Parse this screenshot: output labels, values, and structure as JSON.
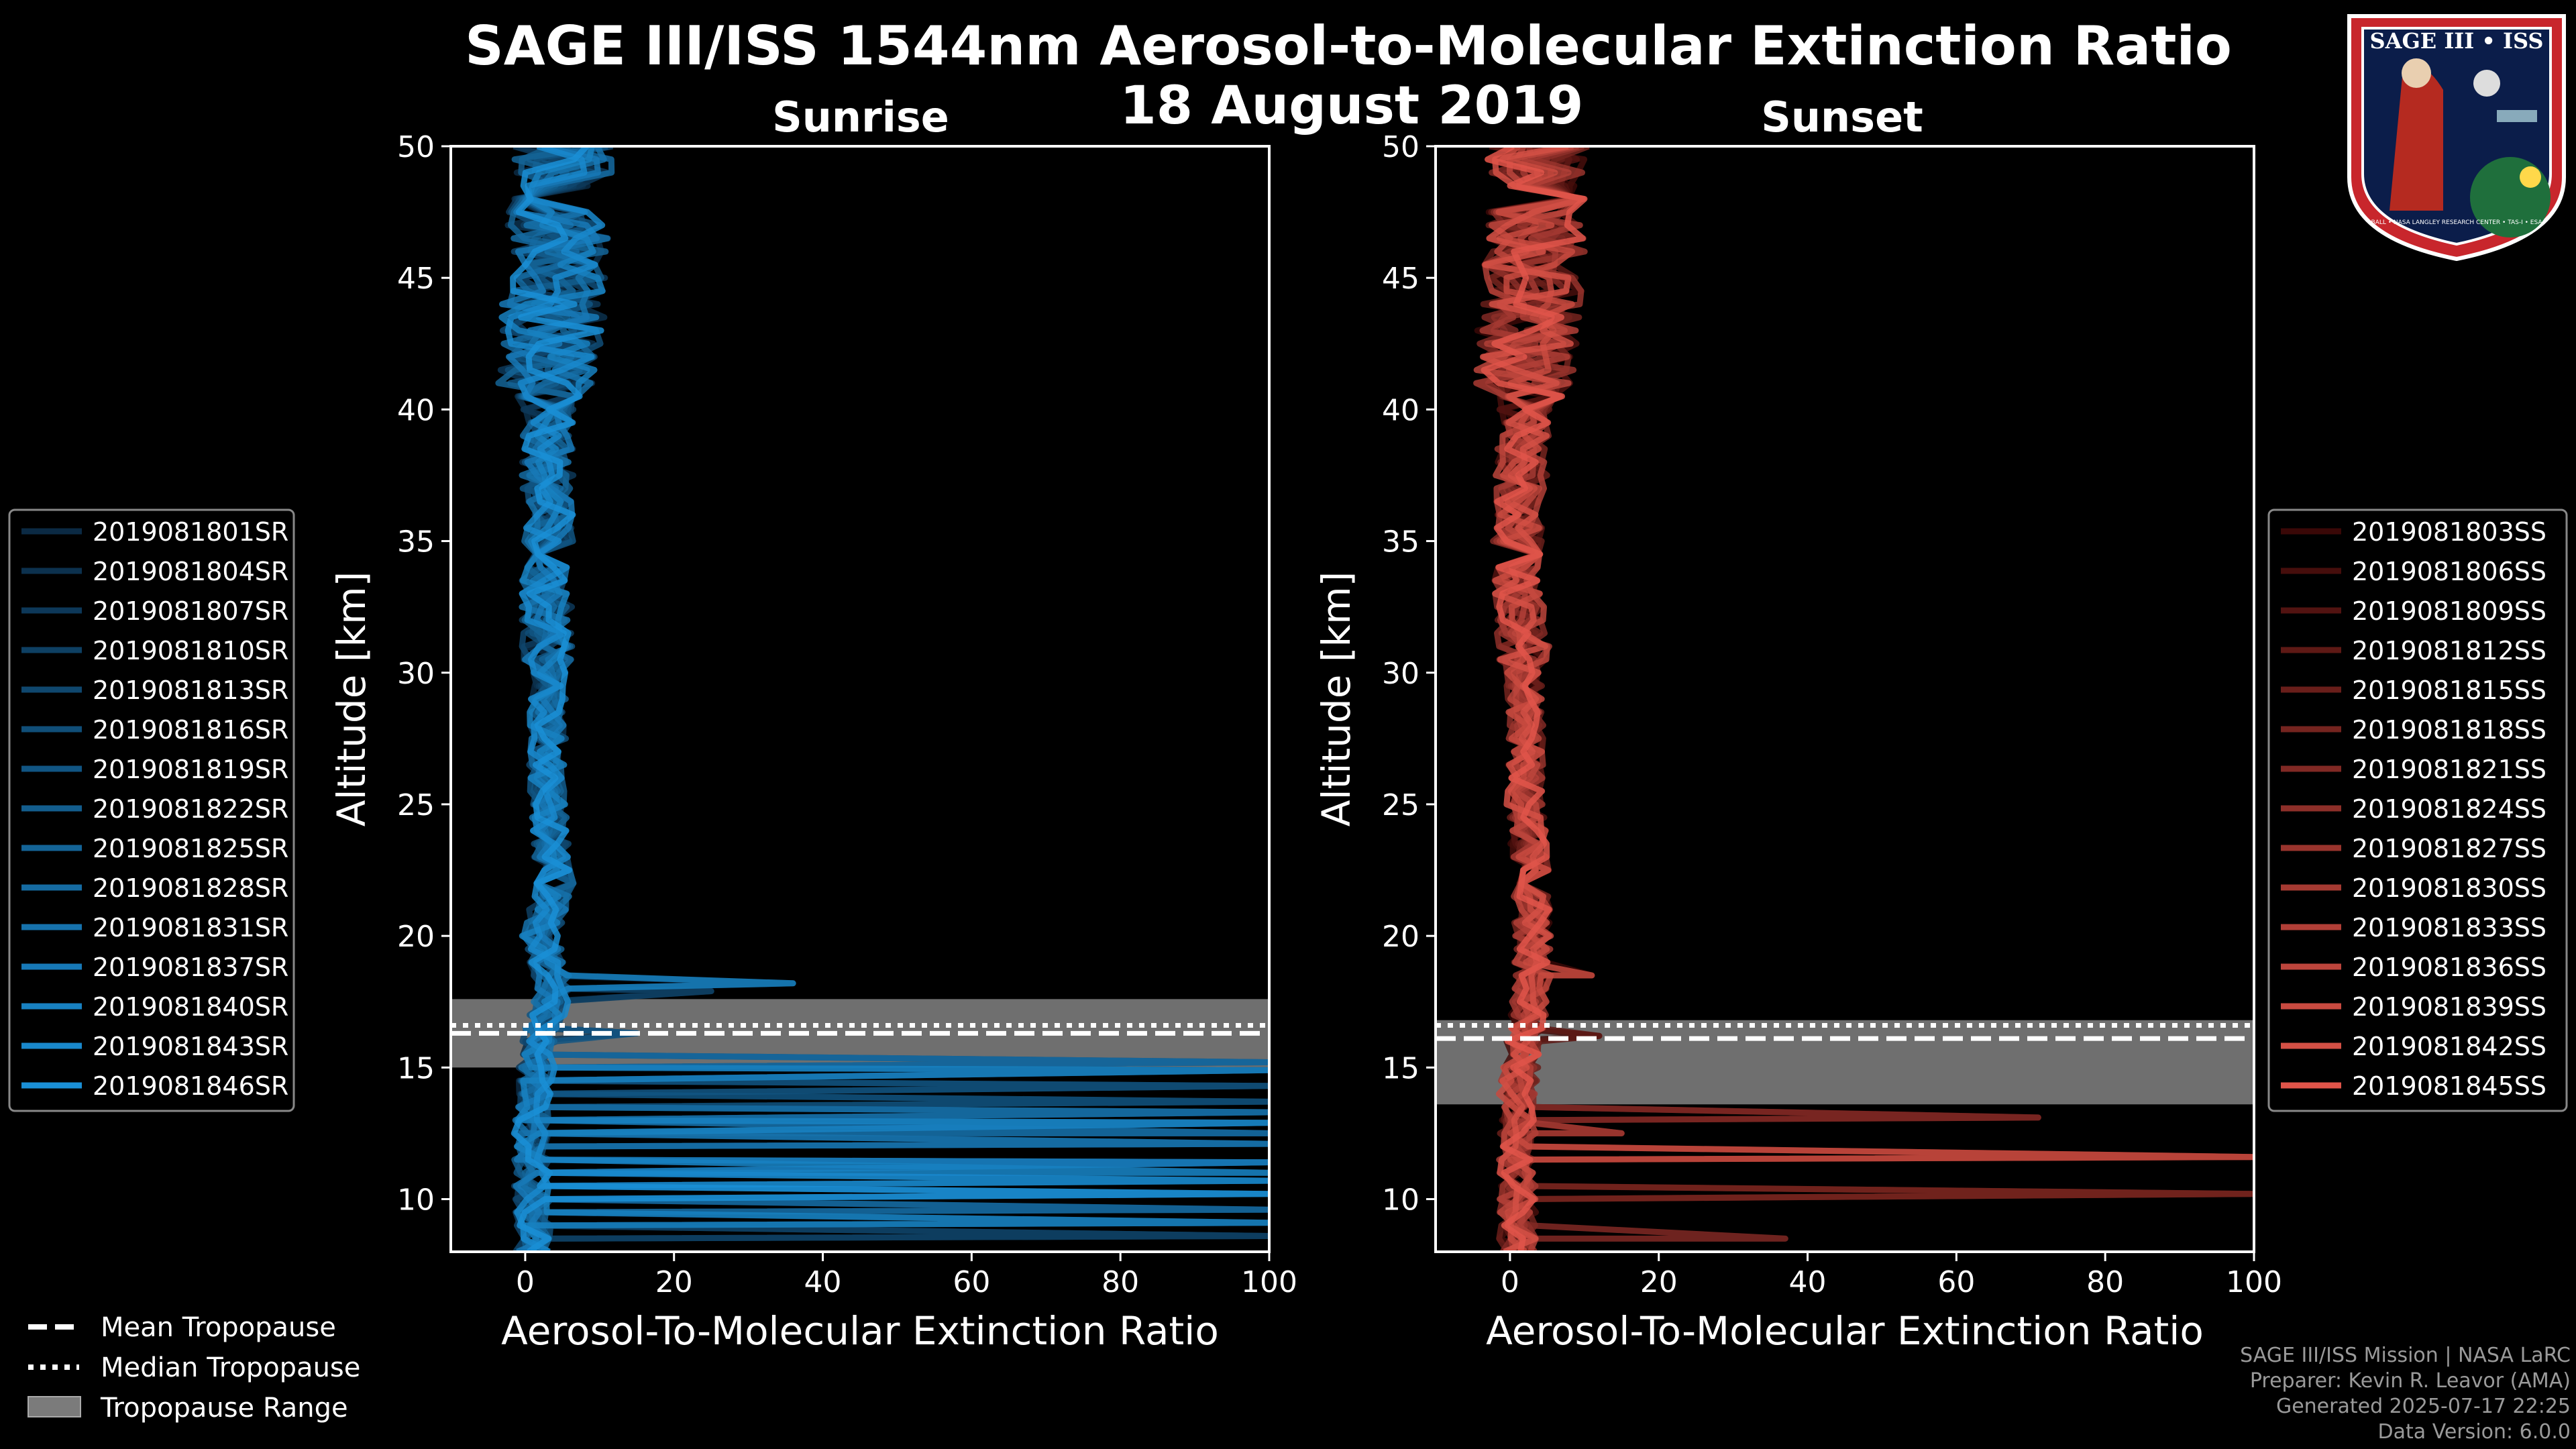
{
  "title": "SAGE III/ISS 1544nm Aerosol-to-Molecular Extinction Ratio",
  "date": "18 August 2019",
  "logo": {
    "name": "SAGE III • ISS",
    "ring_text": "BALL • NASA LANGLEY RESEARCH CENTER • TAS-I • ESA"
  },
  "footer": {
    "line1": "SAGE III/ISS Mission | NASA LaRC",
    "line2": "Preparer: Kevin R. Leavor (AMA)",
    "line3": "Generated 2025-07-17 22:25",
    "line4": "Data Version: 6.0.0"
  },
  "tropo_legend": {
    "mean": "Mean Tropopause",
    "median": "Median Tropopause",
    "range": "Tropopause Range"
  },
  "chart_data": [
    {
      "type": "line",
      "title": "Sunrise",
      "xlabel": "Aerosol-To-Molecular Extinction Ratio",
      "ylabel": "Altitude [km]",
      "xlim": [
        -10,
        100
      ],
      "ylim": [
        8,
        50
      ],
      "xticks": [
        0,
        20,
        40,
        60,
        80,
        100
      ],
      "yticks": [
        10,
        15,
        20,
        25,
        30,
        35,
        40,
        45,
        50
      ],
      "color_dark": "#0b2a44",
      "color_light": "#1a8fd6",
      "tropopause": {
        "mean": 16.3,
        "median": 16.6,
        "range": [
          15.0,
          17.6
        ]
      },
      "legend": [
        "2019081801SR",
        "2019081804SR",
        "2019081807SR",
        "2019081810SR",
        "2019081813SR",
        "2019081816SR",
        "2019081819SR",
        "2019081822SR",
        "2019081825SR",
        "2019081828SR",
        "2019081831SR",
        "2019081837SR",
        "2019081840SR",
        "2019081843SR",
        "2019081846SR"
      ],
      "profile_shape": {
        "upper_band": [
          [
            50,
            5
          ],
          [
            45,
            4
          ],
          [
            40,
            3
          ],
          [
            35,
            3
          ],
          [
            30,
            3
          ],
          [
            25,
            3
          ],
          [
            22,
            4
          ],
          [
            20,
            2
          ],
          [
            18,
            4
          ],
          [
            16,
            2
          ],
          [
            14,
            1
          ],
          [
            12,
            1
          ],
          [
            10,
            1
          ],
          [
            8,
            1
          ]
        ],
        "spikes": [
          [
            18.2,
            36
          ],
          [
            17.9,
            25
          ],
          [
            16.3,
            15
          ],
          [
            15.2,
            100
          ],
          [
            14.9,
            100
          ],
          [
            14.3,
            100
          ],
          [
            13.7,
            100
          ],
          [
            13.3,
            100
          ],
          [
            12.9,
            100
          ],
          [
            12.5,
            100
          ],
          [
            12.1,
            100
          ],
          [
            11.4,
            100
          ],
          [
            11.0,
            100
          ],
          [
            10.7,
            100
          ],
          [
            10.2,
            100
          ],
          [
            9.6,
            100
          ],
          [
            9.1,
            100
          ],
          [
            8.6,
            100
          ]
        ]
      }
    },
    {
      "type": "line",
      "title": "Sunset",
      "xlabel": "Aerosol-To-Molecular Extinction Ratio",
      "ylabel": "Altitude [km]",
      "xlim": [
        -10,
        100
      ],
      "ylim": [
        8,
        50
      ],
      "xticks": [
        0,
        20,
        40,
        60,
        80,
        100
      ],
      "yticks": [
        10,
        15,
        20,
        25,
        30,
        35,
        40,
        45,
        50
      ],
      "color_dark": "#3a0807",
      "color_light": "#e0554a",
      "tropopause": {
        "mean": 16.1,
        "median": 16.6,
        "range": [
          13.6,
          16.8
        ]
      },
      "legend": [
        "2019081803SS",
        "2019081806SS",
        "2019081809SS",
        "2019081812SS",
        "2019081815SS",
        "2019081818SS",
        "2019081821SS",
        "2019081824SS",
        "2019081827SS",
        "2019081830SS",
        "2019081833SS",
        "2019081836SS",
        "2019081839SS",
        "2019081842SS",
        "2019081845SS"
      ],
      "profile_shape": {
        "upper_band": [
          [
            50,
            4
          ],
          [
            45,
            3
          ],
          [
            40,
            2
          ],
          [
            35,
            1
          ],
          [
            30,
            2
          ],
          [
            25,
            2
          ],
          [
            22,
            3
          ],
          [
            20,
            3
          ],
          [
            18,
            3
          ],
          [
            16,
            2
          ],
          [
            14,
            1
          ],
          [
            12,
            1
          ],
          [
            10,
            1
          ],
          [
            8,
            1
          ]
        ],
        "spikes": [
          [
            18.5,
            11
          ],
          [
            16.2,
            12
          ],
          [
            13.1,
            71
          ],
          [
            12.5,
            15
          ],
          [
            11.6,
            100
          ],
          [
            10.2,
            100
          ],
          [
            8.5,
            37
          ]
        ]
      }
    }
  ]
}
